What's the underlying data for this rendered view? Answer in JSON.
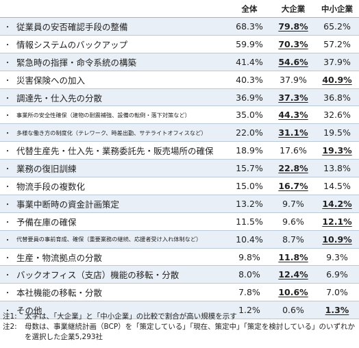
{
  "chart_data": {
    "type": "table",
    "columns": [
      "全体",
      "大企業",
      "中小企業"
    ],
    "rows": [
      {
        "label": "従業員の安否確認手段の整備",
        "values": [
          "68.3%",
          "79.8%",
          "65.2%"
        ],
        "highlight": 1,
        "size": "normal"
      },
      {
        "label": "情報システムのバックアップ",
        "values": [
          "59.9%",
          "70.3%",
          "57.2%"
        ],
        "highlight": 1,
        "size": "normal"
      },
      {
        "label": "緊急時の指揮・命令系統の構築",
        "values": [
          "41.4%",
          "54.6%",
          "37.9%"
        ],
        "highlight": 1,
        "size": "normal"
      },
      {
        "label": "災害保険への加入",
        "values": [
          "40.3%",
          "37.9%",
          "40.9%"
        ],
        "highlight": 2,
        "size": "normal"
      },
      {
        "label": "調達先・仕入先の分散",
        "values": [
          "36.9%",
          "37.3%",
          "36.8%"
        ],
        "highlight": 1,
        "size": "normal"
      },
      {
        "label": "事業所の安全性確保（建物の耐震補強、設備の転倒・落下対策など）",
        "values": [
          "35.0%",
          "44.3%",
          "32.6%"
        ],
        "highlight": 1,
        "size": "tiny"
      },
      {
        "label": "多様な働き方の制度化（テレワーク、時差出勤、サテライトオフィスなど）",
        "values": [
          "22.0%",
          "31.1%",
          "19.5%"
        ],
        "highlight": 1,
        "size": "tiny"
      },
      {
        "label": "代替生産先・仕入先・業務委託先・販売場所の確保",
        "values": [
          "18.9%",
          "17.6%",
          "19.3%"
        ],
        "highlight": 2,
        "size": "normal"
      },
      {
        "label": "業務の復旧訓練",
        "values": [
          "15.7%",
          "22.8%",
          "13.8%"
        ],
        "highlight": 1,
        "size": "normal"
      },
      {
        "label": "物流手段の複数化",
        "values": [
          "15.0%",
          "16.7%",
          "14.5%"
        ],
        "highlight": 1,
        "size": "normal"
      },
      {
        "label": "事業中断時の資金計画策定",
        "values": [
          "13.2%",
          "9.7%",
          "14.2%"
        ],
        "highlight": 2,
        "size": "normal"
      },
      {
        "label": "予備在庫の確保",
        "values": [
          "11.5%",
          "9.6%",
          "12.1%"
        ],
        "highlight": 2,
        "size": "normal"
      },
      {
        "label": "代替要員の事前育成、確保（重要業務の継続、応援者受け入れ体制など）",
        "values": [
          "10.4%",
          "8.7%",
          "10.9%"
        ],
        "highlight": 2,
        "size": "tiny"
      },
      {
        "label": "生産・物流拠点の分散",
        "values": [
          "9.8%",
          "11.8%",
          "9.3%"
        ],
        "highlight": 1,
        "size": "normal"
      },
      {
        "label": "バックオフィス（支店）機能の移転・分散",
        "values": [
          "8.0%",
          "12.4%",
          "6.9%"
        ],
        "highlight": 1,
        "size": "normal"
      },
      {
        "label": "本社機能の移転・分散",
        "values": [
          "7.8%",
          "10.6%",
          "7.0%"
        ],
        "highlight": 1,
        "size": "normal"
      },
      {
        "label": "その他",
        "values": [
          "1.2%",
          "0.6%",
          "1.3%"
        ],
        "highlight": 2,
        "size": "normal"
      }
    ],
    "bullet": "・"
  },
  "notes": [
    {
      "tag": "注1:",
      "text": "太字は、「大企業」と「中小企業」の比較で割合が高い規模を示す"
    },
    {
      "tag": "注2:",
      "text": "母数は、事業継続計画（BCP）を「策定している」「現在、策定中」「策定を検討している」のいずれかを選択した企業5,293社"
    }
  ]
}
